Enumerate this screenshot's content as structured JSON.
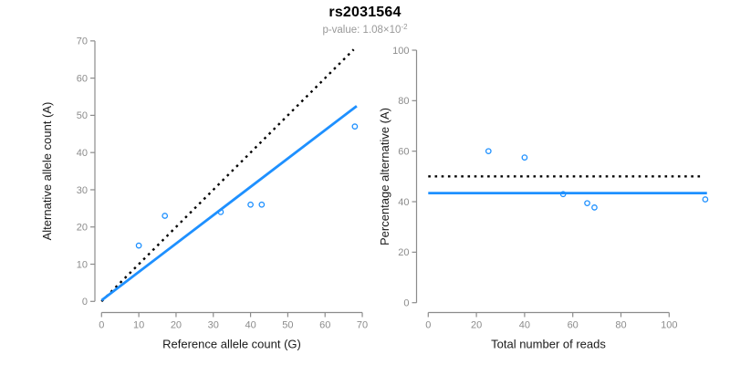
{
  "header": {
    "title": "rs2031564",
    "subtitle_text": "p-value: 1.08×10",
    "subtitle_exponent": "-2"
  },
  "colors": {
    "accent_blue": "#1e90ff",
    "reference_line_black": "#000000",
    "axis_gray": "#8c8c8c",
    "tick_label_gray": "#8c8c8c",
    "subtitle_gray": "#999999",
    "axis_title_dark": "#1a1a1a"
  },
  "chart_data": [
    {
      "name": "allele-counts-scatter",
      "type": "scatter",
      "xlabel": "Reference allele count (G)",
      "ylabel": "Alternative allele count (A)",
      "xlim": [
        0,
        70
      ],
      "ylim": [
        0,
        70
      ],
      "xticks": [
        0,
        10,
        20,
        30,
        40,
        50,
        60,
        70
      ],
      "yticks": [
        0,
        10,
        20,
        30,
        40,
        50,
        60,
        70
      ],
      "points": [
        [
          10,
          15
        ],
        [
          17,
          23
        ],
        [
          32,
          24
        ],
        [
          40,
          26
        ],
        [
          43,
          26
        ],
        [
          68,
          47
        ]
      ],
      "lines": [
        {
          "name": "identity-line",
          "style": "dotted",
          "color": "#000000",
          "from": [
            0,
            0
          ],
          "to": [
            67.7,
            67.7
          ]
        },
        {
          "name": "fit-line",
          "style": "solid",
          "color": "#1e90ff",
          "from": [
            0,
            0.3
          ],
          "to": [
            68.5,
            52.5
          ]
        }
      ],
      "grid": false,
      "legend": "none"
    },
    {
      "name": "percentage-scatter",
      "type": "scatter",
      "xlabel": "Total number of reads",
      "ylabel": "Percentage alternative (A)",
      "xlim": [
        0,
        100
      ],
      "ylim": [
        0,
        100
      ],
      "xticks": [
        0,
        20,
        40,
        60,
        80,
        100
      ],
      "yticks": [
        0,
        20,
        40,
        60,
        80,
        100
      ],
      "points": [
        [
          25,
          60
        ],
        [
          40,
          57.5
        ],
        [
          56,
          43
        ],
        [
          66,
          39.4
        ],
        [
          69,
          37.7
        ],
        [
          115,
          40.9
        ]
      ],
      "lines": [
        {
          "name": "fifty-percent-reference-line",
          "style": "dotted",
          "color": "#000000",
          "from": [
            0,
            50
          ],
          "to": [
            113,
            50
          ]
        },
        {
          "name": "mean-percentage-line",
          "style": "solid",
          "color": "#1e90ff",
          "from": [
            0,
            43.4
          ],
          "to": [
            115.7,
            43.4
          ]
        }
      ],
      "grid": false,
      "legend": "none"
    }
  ]
}
